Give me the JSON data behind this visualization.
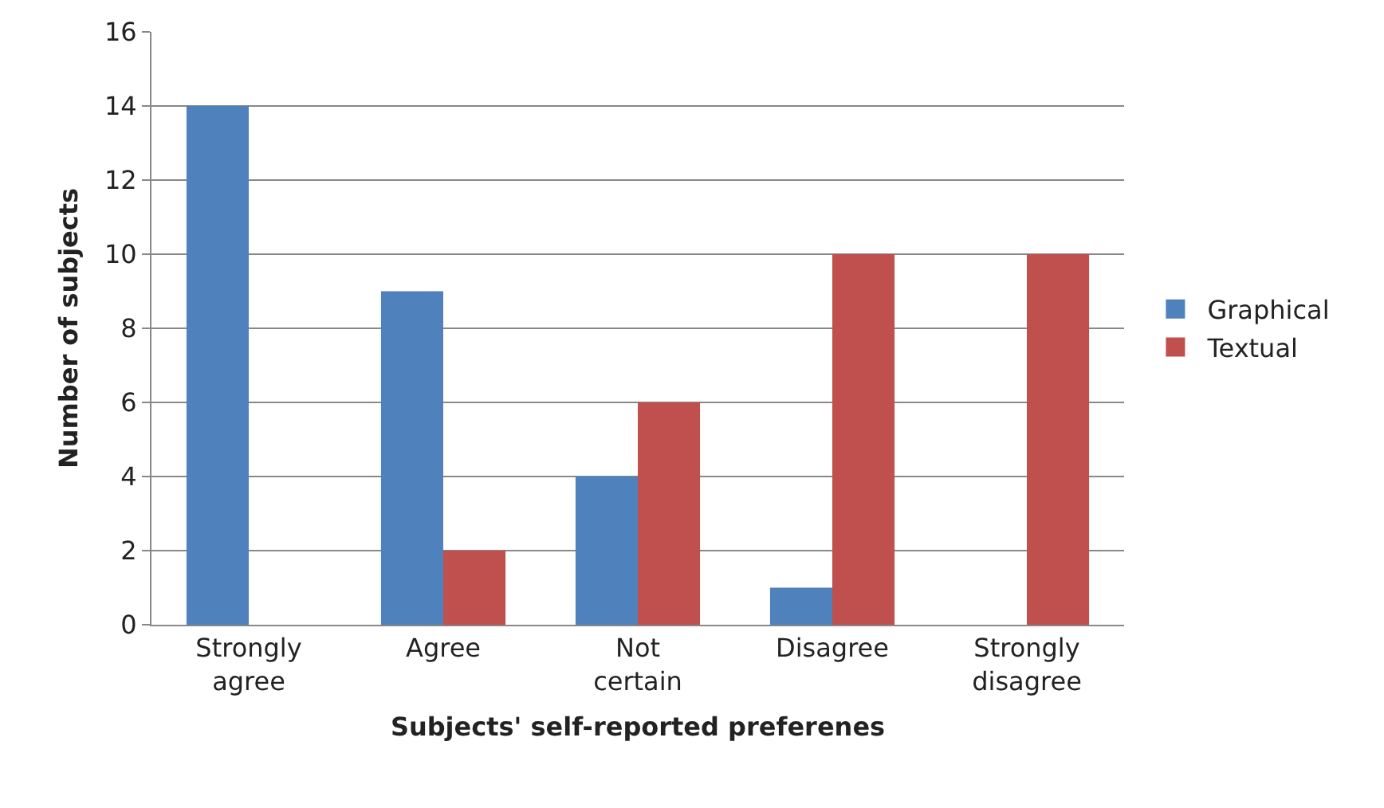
{
  "chart_data": {
    "type": "bar",
    "xlabel": "Subjects' self-reported preferenes",
    "ylabel": "Number of subjects",
    "categories": [
      "Strongly agree",
      "Agree",
      "Not certain",
      "Disagree",
      "Strongly disagree"
    ],
    "series": [
      {
        "name": "Graphical",
        "color": "#4f81bd",
        "values": [
          14,
          9,
          4,
          1,
          0
        ]
      },
      {
        "name": "Textual",
        "color": "#c0504d",
        "values": [
          0,
          2,
          6,
          10,
          10
        ]
      }
    ],
    "ylim": [
      0,
      16
    ],
    "yticks": [
      0,
      2,
      4,
      6,
      8,
      10,
      12,
      14,
      16
    ],
    "grid": "y",
    "legend": "right"
  }
}
